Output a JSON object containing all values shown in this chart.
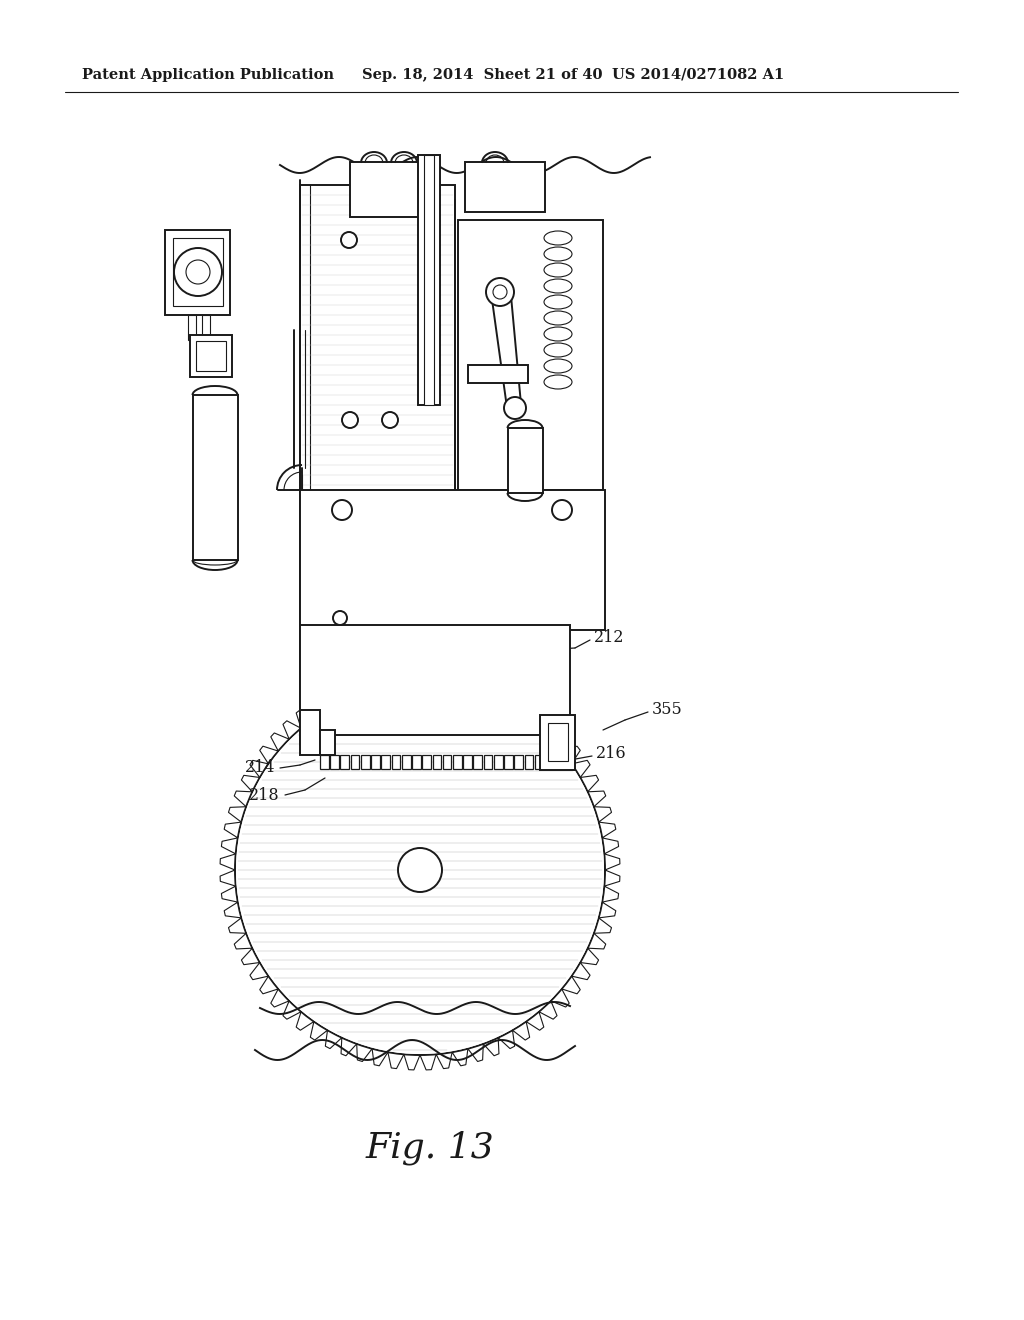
{
  "background_color": "#ffffff",
  "header_left": "Patent Application Publication",
  "header_mid": "Sep. 18, 2014  Sheet 21 of 40",
  "header_right": "US 2014/0271082 A1",
  "fig_label": "Fig. 13",
  "label_212": "212",
  "label_214": "214",
  "label_216": "216",
  "label_218": "218",
  "label_355": "355",
  "line_color": "#1a1a1a",
  "gray_line": "#999999",
  "light_gray": "#cccccc"
}
